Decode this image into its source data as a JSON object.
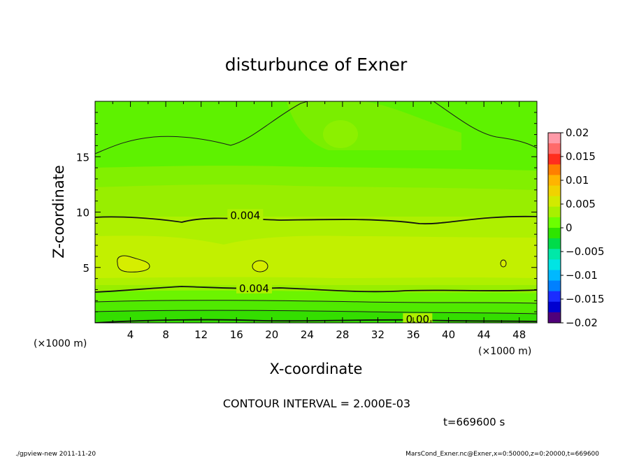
{
  "chart_data": {
    "type": "contour",
    "title": "disturbunce of Exner",
    "xlabel": "X-coordinate",
    "ylabel": "Z-coordinate",
    "x_unit_left": "(×1000 m)",
    "x_unit_right": "(×1000 m)",
    "xlim": [
      0,
      50
    ],
    "ylim": [
      0,
      20
    ],
    "xticks": [
      4,
      8,
      12,
      16,
      20,
      24,
      28,
      32,
      36,
      40,
      44,
      48
    ],
    "yticks": [
      5,
      10,
      15
    ],
    "contour_interval_text": "CONTOUR INTERVAL = 2.000E-03",
    "contour_labels": [
      {
        "text": "0.004",
        "x": 17,
        "z": 9.7
      },
      {
        "text": "0.004",
        "x": 18,
        "z": 3.1
      },
      {
        "text": "0.00",
        "x": 36.5,
        "z": 0.3
      }
    ],
    "colorbar": {
      "levels": [
        -0.02,
        -0.015,
        -0.01,
        -0.005,
        0,
        0.005,
        0.01,
        0.015,
        0.02
      ],
      "tick_labels": [
        "0.02",
        "0.015",
        "0.01",
        "0.005",
        "0",
        "−0.005",
        "−0.01",
        "−0.015",
        "−0.02"
      ],
      "colors": [
        "#ff9aa8",
        "#ff6a6a",
        "#ff2e1e",
        "#ff7f00",
        "#ffb400",
        "#f0d200",
        "#d2ea00",
        "#a8f000",
        "#6cff00",
        "#2ee400",
        "#00dc4a",
        "#00e8a8",
        "#00e4e4",
        "#00b8ff",
        "#0080ff",
        "#1a2cff",
        "#0000d0",
        "#50007a"
      ]
    },
    "field_bands": [
      {
        "value": -0.0005,
        "color": "#2ee000"
      },
      {
        "value": 0.0005,
        "color": "#5cf400"
      },
      {
        "value": 0.0015,
        "color": "#82f000"
      },
      {
        "value": 0.0025,
        "color": "#98ee00"
      },
      {
        "value": 0.0035,
        "color": "#aef000"
      },
      {
        "value": 0.0045,
        "color": "#c2f000"
      }
    ]
  },
  "time_label": "t=669600 s",
  "footer_left": "./gpview-new   2011-11-20",
  "footer_right": "MarsCond_Exner.nc@Exner,x=0:50000,z=0:20000,t=669600"
}
